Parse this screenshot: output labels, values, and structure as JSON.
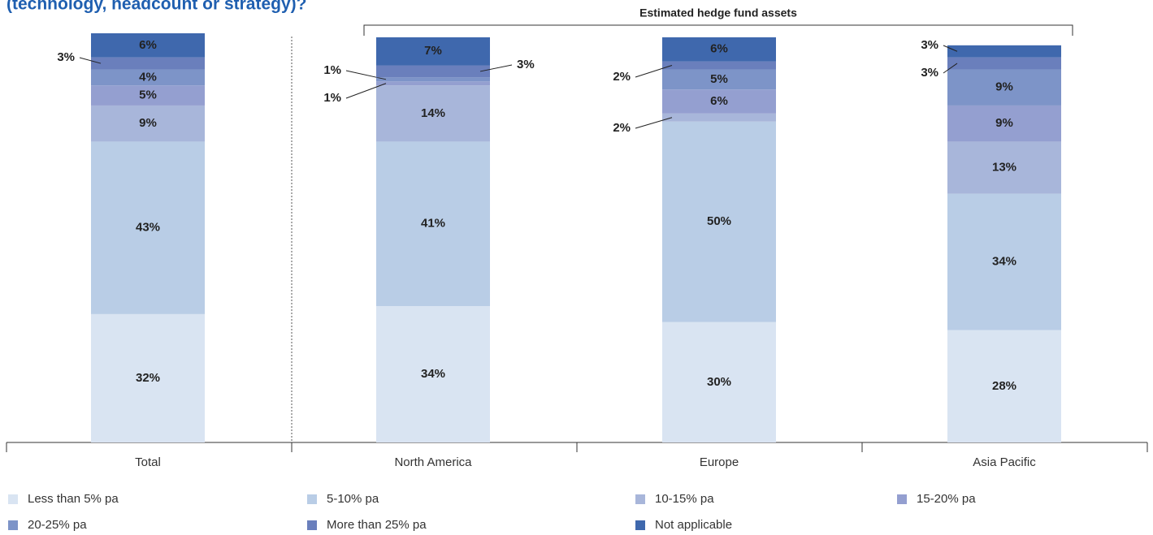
{
  "chart_data": {
    "type": "stacked_bar",
    "title": "(technology, headcount or strategy)?",
    "annotation": "Estimated hedge fund assets",
    "categories": [
      "Total",
      "North America",
      "Europe",
      "Asia Pacific"
    ],
    "series": [
      {
        "name": "Less than 5% pa",
        "color": "#d9e4f2",
        "values": [
          32,
          34,
          30,
          28
        ]
      },
      {
        "name": "5-10% pa",
        "color": "#b9cde6",
        "values": [
          43,
          41,
          50,
          34
        ]
      },
      {
        "name": "10-15% pa",
        "color": "#a8b6da",
        "values": [
          9,
          14,
          2,
          13
        ]
      },
      {
        "name": "15-20% pa",
        "color": "#949fd0",
        "values": [
          5,
          1,
          6,
          9
        ]
      },
      {
        "name": "20-25% pa",
        "color": "#7d94c8",
        "values": [
          4,
          1,
          5,
          9
        ]
      },
      {
        "name": "More than 25% pa",
        "color": "#6a7fbc",
        "values": [
          3,
          3,
          2,
          3
        ]
      },
      {
        "name": "Not applicable",
        "color": "#3f68ad",
        "values": [
          6,
          7,
          6,
          3
        ]
      }
    ],
    "value_labels": [
      [
        "32%",
        "34%",
        "30%",
        "28%"
      ],
      [
        "43%",
        "41%",
        "50%",
        "34%"
      ],
      [
        "9%",
        "14%",
        "2%",
        "13%"
      ],
      [
        "5%",
        "1%",
        "6%",
        "9%"
      ],
      [
        "4%",
        "1%",
        "5%",
        "9%"
      ],
      [
        "3%",
        "3%",
        "2%",
        "3%"
      ],
      [
        "6%",
        "7%",
        "6%",
        "3%"
      ]
    ],
    "ylim": [
      0,
      102
    ]
  }
}
